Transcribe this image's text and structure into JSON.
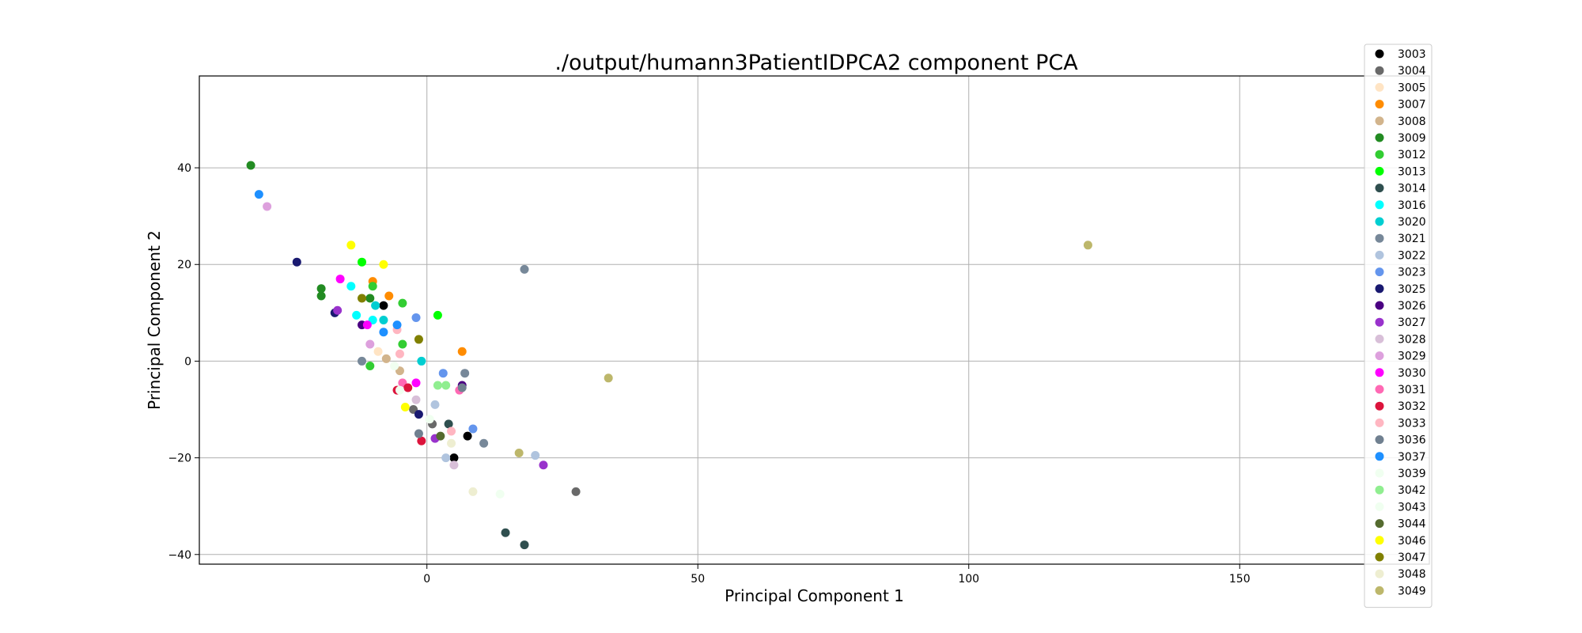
{
  "chart_data": {
    "type": "scatter",
    "title": "./output/humann3PatientIDPCA2 component PCA",
    "xlabel": "Principal Component 1",
    "ylabel": "Principal Component 2",
    "xlim": [
      -42,
      185
    ],
    "ylim": [
      -42,
      59
    ],
    "xticks": [
      0,
      50,
      100,
      150
    ],
    "yticks": [
      -40,
      -20,
      0,
      20,
      40
    ],
    "grid": true,
    "legend_position": "top-right",
    "series": [
      {
        "name": "3003",
        "color": "#000000",
        "points": [
          [
            -8,
            11.5
          ],
          [
            7.5,
            -15.5
          ],
          [
            5,
            -20
          ]
        ]
      },
      {
        "name": "3004",
        "color": "#696969",
        "points": [
          [
            27.5,
            -27
          ],
          [
            1,
            -13
          ],
          [
            -2.5,
            -10
          ]
        ]
      },
      {
        "name": "3005",
        "color": "#ffe4c4",
        "points": [
          [
            -9,
            2
          ],
          [
            -7.5,
            0.5
          ]
        ]
      },
      {
        "name": "3007",
        "color": "#ff8c00",
        "points": [
          [
            -10,
            16.5
          ],
          [
            -7,
            13.5
          ],
          [
            6.5,
            2
          ]
        ]
      },
      {
        "name": "3008",
        "color": "#d2b48c",
        "points": [
          [
            -5,
            -2
          ],
          [
            -7.5,
            0.5
          ]
        ]
      },
      {
        "name": "3009",
        "color": "#228b22",
        "points": [
          [
            -32.5,
            40.5
          ],
          [
            -19.5,
            15
          ],
          [
            -19.5,
            13.5
          ],
          [
            -10.5,
            13
          ]
        ]
      },
      {
        "name": "3012",
        "color": "#32cd32",
        "points": [
          [
            -10,
            15.5
          ],
          [
            -4.5,
            12
          ],
          [
            -4.5,
            3.5
          ],
          [
            -10.5,
            -1
          ]
        ]
      },
      {
        "name": "3013",
        "color": "#00ff00",
        "points": [
          [
            -12,
            20.5
          ],
          [
            2,
            9.5
          ]
        ]
      },
      {
        "name": "3014",
        "color": "#2f4f4f",
        "points": [
          [
            14.5,
            -35.5
          ],
          [
            18,
            -38
          ],
          [
            4,
            -13
          ]
        ]
      },
      {
        "name": "3016",
        "color": "#00ffff",
        "points": [
          [
            -14,
            15.5
          ],
          [
            -13,
            9.5
          ],
          [
            -10,
            8.5
          ]
        ]
      },
      {
        "name": "3020",
        "color": "#00ced1",
        "points": [
          [
            -8,
            8.5
          ],
          [
            -1,
            0
          ],
          [
            -9.5,
            11.5
          ]
        ]
      },
      {
        "name": "3021",
        "color": "#778899",
        "points": [
          [
            18,
            19
          ],
          [
            7,
            -2.5
          ],
          [
            -12,
            0
          ],
          [
            10.5,
            -17
          ]
        ]
      },
      {
        "name": "3022",
        "color": "#b0c4de",
        "points": [
          [
            20,
            -19.5
          ],
          [
            3.5,
            -20
          ],
          [
            1.5,
            -9
          ]
        ]
      },
      {
        "name": "3023",
        "color": "#6495ed",
        "points": [
          [
            -2,
            9
          ],
          [
            3,
            -2.5
          ],
          [
            8.5,
            -14
          ]
        ]
      },
      {
        "name": "3025",
        "color": "#191970",
        "points": [
          [
            -24,
            20.5
          ],
          [
            -17,
            10
          ],
          [
            -1.5,
            -11
          ]
        ]
      },
      {
        "name": "3026",
        "color": "#4b0082",
        "points": [
          [
            -12,
            7.5
          ],
          [
            6.5,
            -5
          ]
        ]
      },
      {
        "name": "3027",
        "color": "#9932cc",
        "points": [
          [
            21.5,
            -21.5
          ],
          [
            -16.5,
            10.5
          ],
          [
            1.5,
            -16
          ]
        ]
      },
      {
        "name": "3028",
        "color": "#d8bfd8",
        "points": [
          [
            5,
            -21.5
          ],
          [
            -2,
            -8
          ]
        ]
      },
      {
        "name": "3029",
        "color": "#dda0dd",
        "points": [
          [
            -29.5,
            32
          ],
          [
            -10.5,
            3.5
          ]
        ]
      },
      {
        "name": "3030",
        "color": "#ff00ff",
        "points": [
          [
            -16,
            17
          ],
          [
            -11,
            7.5
          ],
          [
            -2,
            -4.5
          ]
        ]
      },
      {
        "name": "3031",
        "color": "#ff69b4",
        "points": [
          [
            6,
            -6
          ],
          [
            -4.5,
            -4.5
          ]
        ]
      },
      {
        "name": "3032",
        "color": "#dc143c",
        "points": [
          [
            -5.5,
            -6
          ],
          [
            -3.5,
            -5.5
          ],
          [
            -1,
            -16.5
          ]
        ]
      },
      {
        "name": "3033",
        "color": "#ffb6c1",
        "points": [
          [
            -5.5,
            6.5
          ],
          [
            -5,
            1.5
          ],
          [
            4.5,
            -14.5
          ]
        ]
      },
      {
        "name": "3036",
        "color": "#708090",
        "points": [
          [
            -1.5,
            -15
          ],
          [
            6.5,
            -5.5
          ]
        ]
      },
      {
        "name": "3037",
        "color": "#1e90ff",
        "points": [
          [
            -31,
            34.5
          ],
          [
            -8,
            6
          ],
          [
            -5.5,
            7.5
          ]
        ]
      },
      {
        "name": "3039",
        "color": "#f0fff0",
        "points": [
          [
            -6,
            -1
          ],
          [
            -5,
            -6
          ]
        ]
      },
      {
        "name": "3042",
        "color": "#90ee90",
        "points": [
          [
            2,
            -5
          ],
          [
            3.5,
            -5
          ]
        ]
      },
      {
        "name": "3043",
        "color": "#f0fff0",
        "points": [
          [
            13.5,
            -27.5
          ],
          [
            0.5,
            -12
          ]
        ]
      },
      {
        "name": "3044",
        "color": "#556b2f",
        "points": [
          [
            2.5,
            -15.5
          ]
        ]
      },
      {
        "name": "3046",
        "color": "#ffff00",
        "points": [
          [
            -14,
            24
          ],
          [
            -8,
            20
          ],
          [
            -4,
            -9.5
          ]
        ]
      },
      {
        "name": "3047",
        "color": "#808000",
        "points": [
          [
            -12,
            13
          ],
          [
            -1.5,
            4.5
          ]
        ]
      },
      {
        "name": "3048",
        "color": "#eeeed1",
        "points": [
          [
            8.5,
            -27
          ],
          [
            4.5,
            -17
          ]
        ]
      },
      {
        "name": "3049",
        "color": "#bdb76b",
        "points": [
          [
            122,
            24
          ],
          [
            33.5,
            -3.5
          ],
          [
            17,
            -19
          ]
        ]
      }
    ]
  }
}
